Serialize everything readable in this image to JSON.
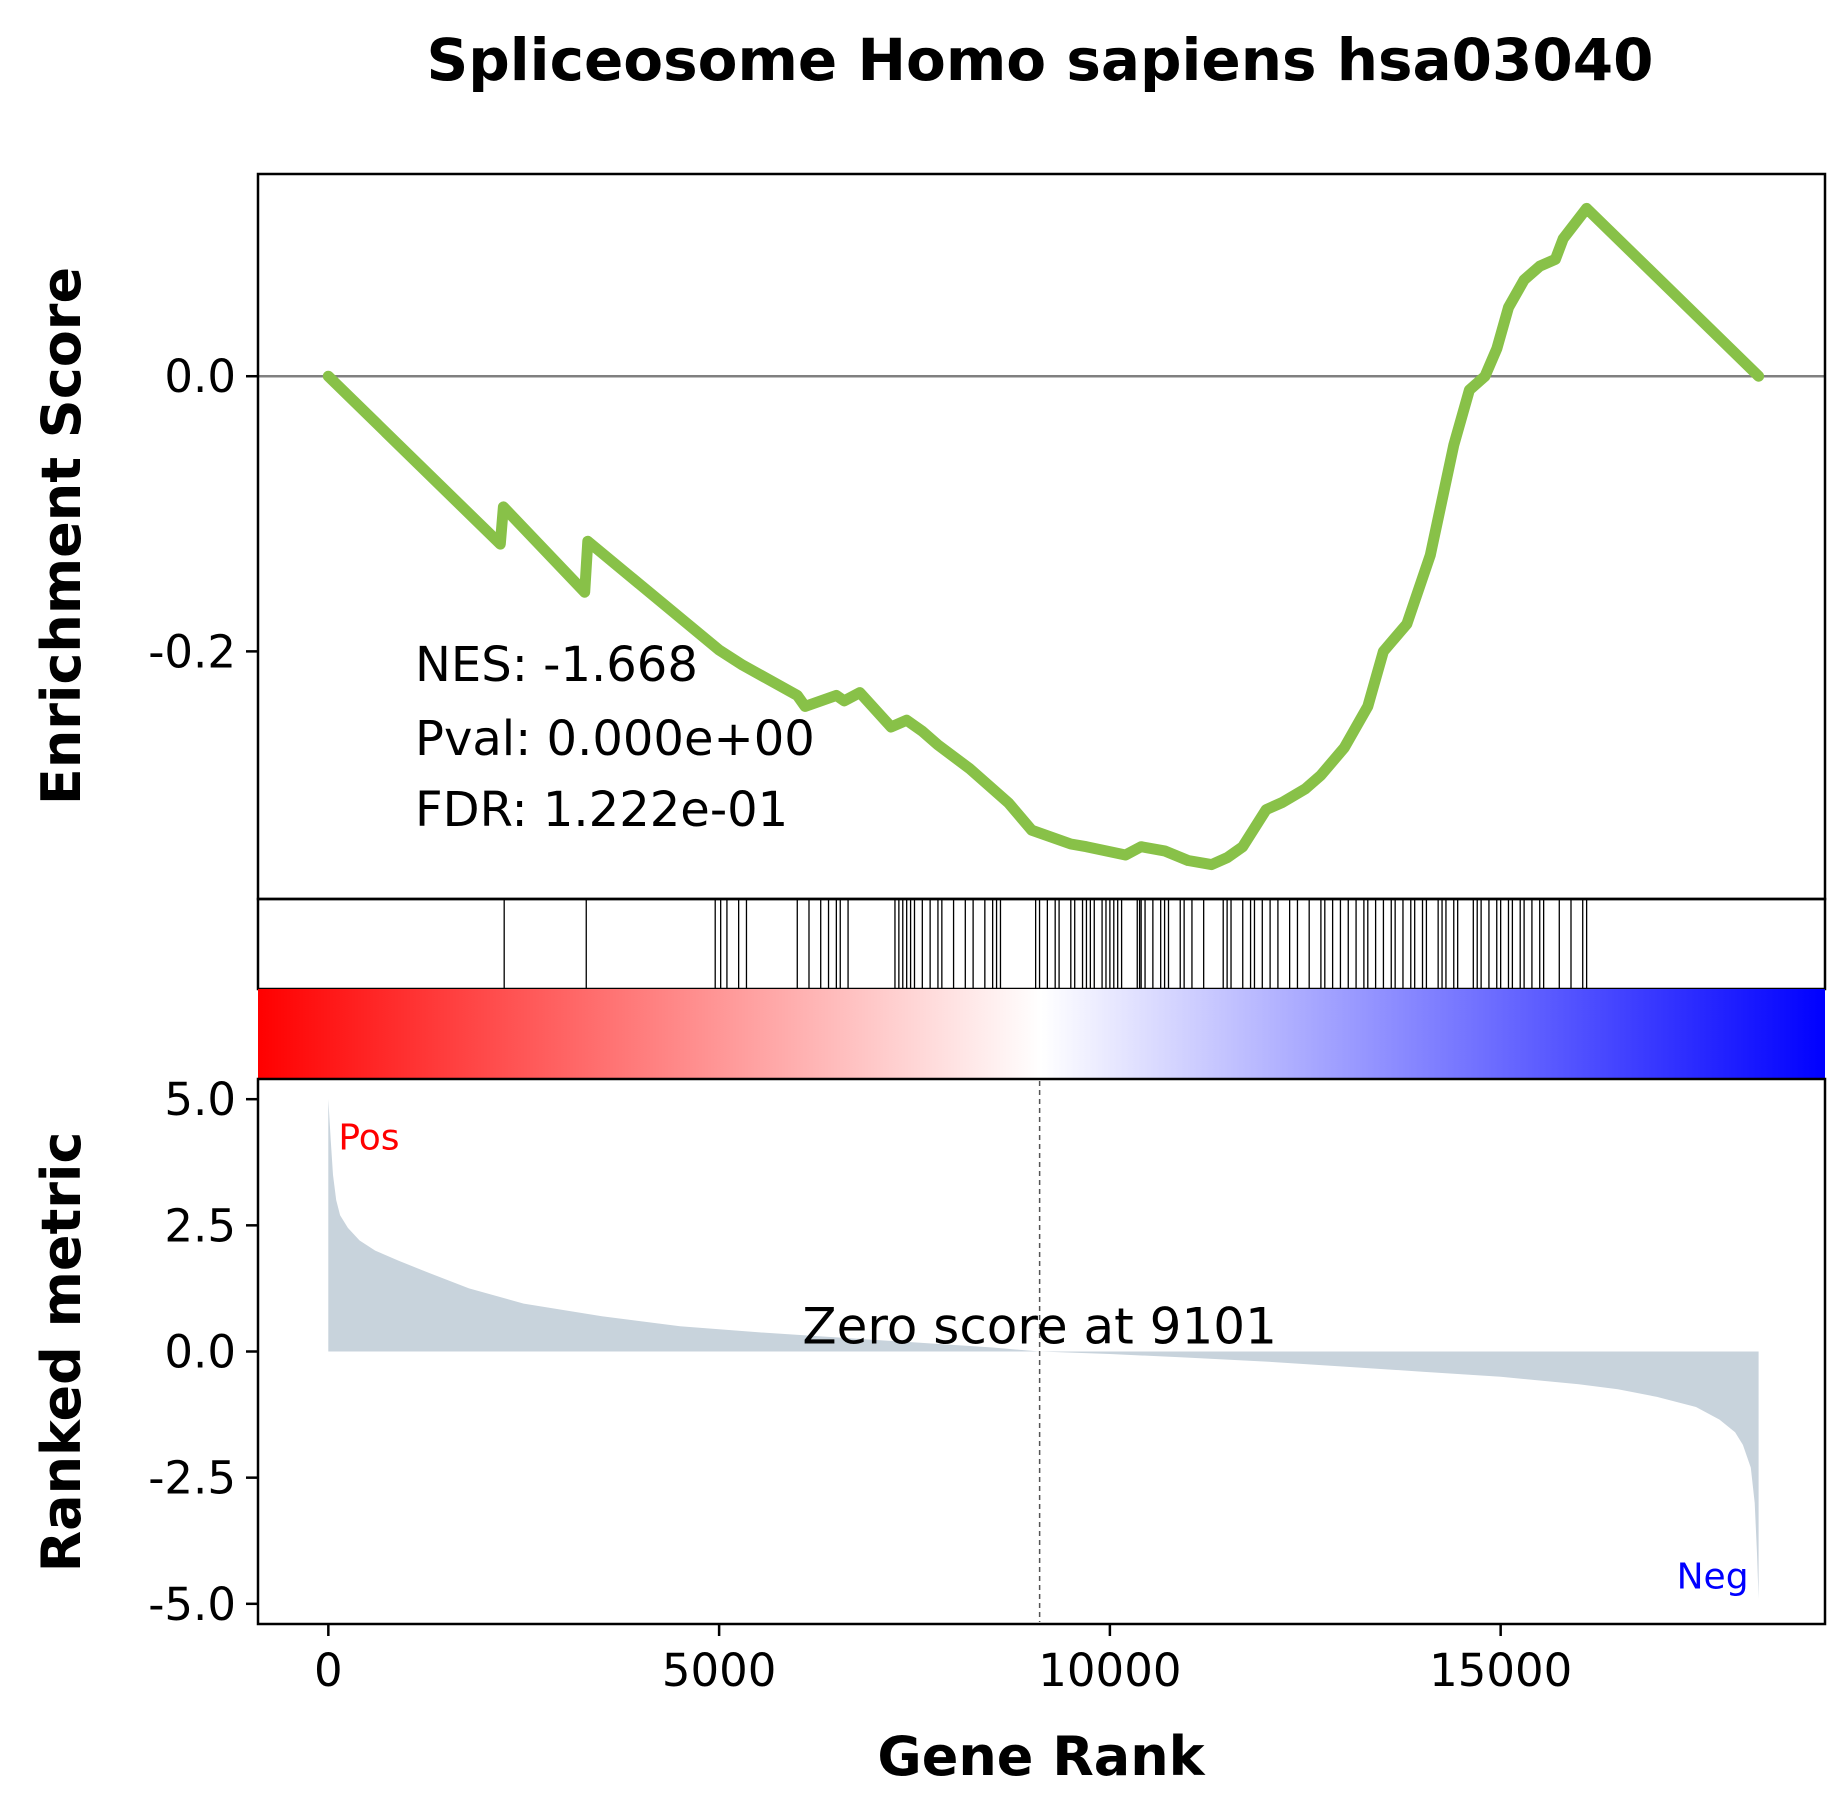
{
  "chart_data": {
    "type": "line",
    "title": "Spliceosome Homo sapiens hsa03040",
    "xlabel": "Gene Rank",
    "xlim": [
      -900,
      19150
    ],
    "xticks": [
      0,
      5000,
      10000,
      15000
    ],
    "xtick_labels": [
      "0",
      "5000",
      "10000",
      "15000"
    ],
    "panels": {
      "enrichment": {
        "ylabel": "Enrichment Score",
        "ylim": [
          -0.38,
          0.147
        ],
        "yticks": [
          0.0,
          -0.2
        ],
        "ytick_labels": [
          "0.0",
          "-0.2"
        ],
        "line_color": "#88c148",
        "baseline_color": "#808080",
        "annotations": [
          "NES: -1.668",
          "Pval: 0.000e+00",
          "FDR: 1.222e-01"
        ],
        "series": [
          {
            "x": [
              0,
              2200,
              2240,
              3280,
              3320,
              5000,
              5300,
              6000,
              6100,
              6500,
              6600,
              6800,
              7200,
              7400,
              7600,
              7800,
              8200,
              8700,
              9000,
              9500,
              9700,
              10200,
              10400,
              10700,
              11000,
              11300,
              11500,
              11700,
              12000,
              12200,
              12500,
              12700,
              13000,
              13300,
              13500,
              13800,
              14100,
              14400,
              14600,
              14800,
              14950,
              15100,
              15300,
              15500,
              15700,
              15800,
              16100,
              18300
            ],
            "y": [
              0.0,
              -0.122,
              -0.095,
              -0.157,
              -0.12,
              -0.199,
              -0.21,
              -0.232,
              -0.24,
              -0.232,
              -0.236,
              -0.23,
              -0.255,
              -0.25,
              -0.258,
              -0.268,
              -0.285,
              -0.31,
              -0.33,
              -0.34,
              -0.342,
              -0.348,
              -0.342,
              -0.345,
              -0.352,
              -0.355,
              -0.35,
              -0.342,
              -0.315,
              -0.31,
              -0.3,
              -0.29,
              -0.27,
              -0.24,
              -0.2,
              -0.18,
              -0.13,
              -0.05,
              -0.01,
              0.0,
              0.02,
              0.05,
              0.07,
              0.08,
              0.085,
              0.1,
              0.122,
              0.0
            ]
          }
        ]
      },
      "hits": {
        "positions": [
          2250,
          3300,
          4950,
          5020,
          5100,
          5250,
          5350,
          6000,
          6150,
          6300,
          6400,
          6500,
          6550,
          6650,
          7250,
          7300,
          7350,
          7400,
          7450,
          7500,
          7600,
          7700,
          7800,
          7850,
          8000,
          8150,
          8250,
          8400,
          8500,
          8550,
          8600,
          9050,
          9100,
          9200,
          9300,
          9350,
          9500,
          9550,
          9650,
          9700,
          9750,
          9800,
          9900,
          9950,
          10000,
          10050,
          10100,
          10150,
          10350,
          10380,
          10400,
          10450,
          10550,
          10650,
          10700,
          10750,
          10900,
          10950,
          11050,
          11200,
          11450,
          11500,
          11550,
          11700,
          11800,
          11850,
          11950,
          12050,
          12150,
          12300,
          12400,
          12550,
          12700,
          12750,
          12850,
          12950,
          13050,
          13150,
          13250,
          13300,
          13400,
          13500,
          13600,
          13650,
          13750,
          13850,
          13900,
          14000,
          14050,
          14200,
          14250,
          14300,
          14400,
          14450,
          14650,
          14700,
          14750,
          14850,
          14950,
          15000,
          15100,
          15150,
          15250,
          15300,
          15400,
          15500,
          15550,
          15750,
          15900,
          16050,
          16100
        ]
      },
      "colorbar": {
        "left_color": "#ff0000",
        "right_color": "#0000ff"
      },
      "ranked_metric": {
        "ylabel": "Ranked metric",
        "ylim": [
          -5.4,
          5.4
        ],
        "yticks": [
          5.0,
          2.5,
          0.0,
          -2.5,
          -5.0
        ],
        "ytick_labels": [
          "5.0",
          "2.5",
          "0.0",
          "-2.5",
          "-5.0"
        ],
        "fill_color": "#c8d3dc",
        "zero_cross_rank": 9101,
        "zero_text": "Zero score at 9101",
        "pos_label": "Pos",
        "neg_label": "Neg",
        "x": [
          0,
          30,
          60,
          100,
          150,
          250,
          400,
          600,
          900,
          1300,
          1800,
          2500,
          3500,
          4500,
          5500,
          6500,
          7500,
          8500,
          9101,
          10000,
          11000,
          12000,
          13000,
          14000,
          15000,
          16000,
          16500,
          17000,
          17500,
          17800,
          18000,
          18100,
          18200,
          18250,
          18280,
          18300
        ],
        "y": [
          5.0,
          4.2,
          3.5,
          3.0,
          2.7,
          2.45,
          2.2,
          2.0,
          1.8,
          1.55,
          1.25,
          0.95,
          0.7,
          0.5,
          0.38,
          0.28,
          0.18,
          0.08,
          0.0,
          -0.05,
          -0.12,
          -0.2,
          -0.3,
          -0.4,
          -0.5,
          -0.65,
          -0.75,
          -0.9,
          -1.1,
          -1.35,
          -1.6,
          -1.85,
          -2.3,
          -3.0,
          -4.0,
          -4.9
        ]
      }
    }
  }
}
